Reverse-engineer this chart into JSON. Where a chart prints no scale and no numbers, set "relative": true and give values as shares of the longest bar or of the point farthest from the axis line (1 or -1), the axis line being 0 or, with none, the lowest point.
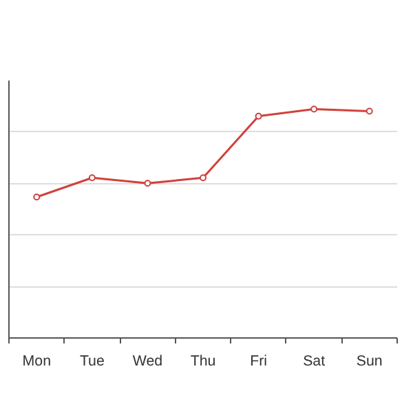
{
  "chart_data": {
    "type": "line",
    "relative": true,
    "categories": [
      "Mon",
      "Tue",
      "Wed",
      "Thu",
      "Fri",
      "Sat",
      "Sun"
    ],
    "series": [
      {
        "color": "#d0413b",
        "values": [
          0.616,
          0.7,
          0.676,
          0.7,
          0.969,
          1,
          0.991
        ]
      }
    ],
    "grid": "y",
    "marker": "circle",
    "line_style": "solid"
  }
}
